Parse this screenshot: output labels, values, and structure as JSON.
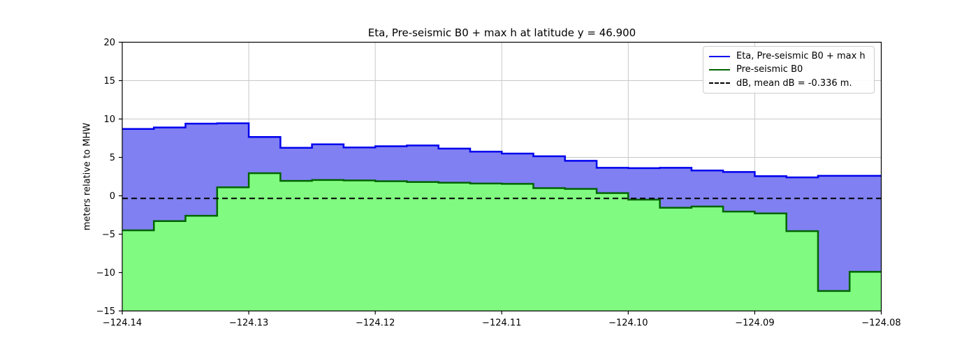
{
  "figure": {
    "background": "#ffffff"
  },
  "chart_data": {
    "type": "area",
    "title": "Eta, Pre-seismic B0 + max h at latitude y = 46.900",
    "xlabel": "",
    "ylabel": "meters relative to MHW",
    "xlim": [
      -124.14,
      -124.08
    ],
    "ylim": [
      -15,
      20
    ],
    "grid": true,
    "legend_position": "upper-right",
    "x_tick_values": [
      -124.14,
      -124.13,
      -124.12,
      -124.11,
      -124.1,
      -124.09,
      -124.08
    ],
    "x_tick_labels": [
      "−124.14",
      "−124.13",
      "−124.12",
      "−124.11",
      "−124.10",
      "−124.09",
      "−124.08"
    ],
    "y_tick_values": [
      -15,
      -10,
      -5,
      0,
      5,
      10,
      15,
      20
    ],
    "y_tick_labels": [
      "−15",
      "−10",
      "−5",
      "0",
      "5",
      "10",
      "15",
      "20"
    ],
    "x_edges": [
      -124.14,
      -124.1375,
      -124.135,
      -124.1325,
      -124.13,
      -124.1275,
      -124.125,
      -124.1225,
      -124.12,
      -124.1175,
      -124.115,
      -124.1125,
      -124.11,
      -124.1075,
      -124.105,
      -124.1025,
      -124.1,
      -124.0975,
      -124.095,
      -124.0925,
      -124.09,
      -124.0875,
      -124.085,
      -124.0825,
      -124.08
    ],
    "series": [
      {
        "name": "Eta, Pre-seismic B0 + max h",
        "style": "step-fill",
        "line_color": "#0000ee",
        "fill_color": "#8080f2",
        "values": [
          8.7,
          8.9,
          9.4,
          9.45,
          7.65,
          6.25,
          6.7,
          6.3,
          6.45,
          6.55,
          6.15,
          5.75,
          5.5,
          5.15,
          4.55,
          3.65,
          3.6,
          3.65,
          3.3,
          3.1,
          2.55,
          2.4,
          2.6,
          2.6
        ]
      },
      {
        "name": "Pre-seismic B0",
        "style": "step-fill",
        "line_color": "#006400",
        "fill_color": "#80fa80",
        "values": [
          -4.5,
          -3.3,
          -2.6,
          1.1,
          2.95,
          1.95,
          2.05,
          2.0,
          1.9,
          1.8,
          1.7,
          1.6,
          1.55,
          1.0,
          0.9,
          0.35,
          -0.5,
          -1.55,
          -1.4,
          -2.05,
          -2.3,
          -4.6,
          -12.4,
          -9.9
        ]
      },
      {
        "name": "dB, mean dB = -0.336 m.",
        "style": "dashed-hline",
        "line_color": "#000000",
        "value": -0.336
      }
    ],
    "colors": {
      "grid": "#c8c8c8",
      "axes_frame": "#000000",
      "tick_text": "#000000"
    }
  }
}
